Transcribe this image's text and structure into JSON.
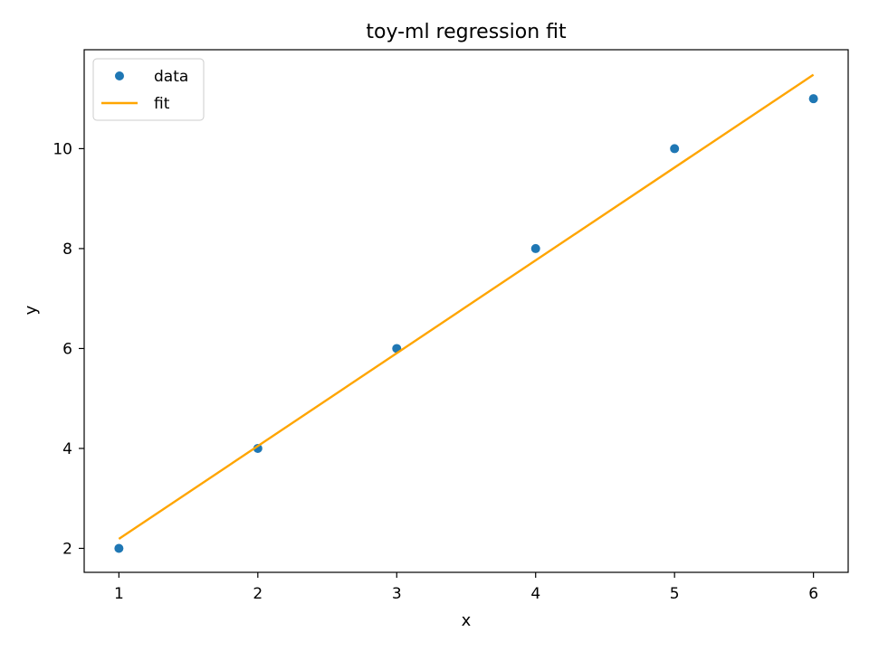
{
  "chart_data": {
    "type": "scatter",
    "title": "toy-ml regression fit",
    "xlabel": "x",
    "ylabel": "y",
    "xlim": [
      0.75,
      6.25
    ],
    "ylim": [
      1.52,
      11.98
    ],
    "xticks": [
      1,
      2,
      3,
      4,
      5,
      6
    ],
    "yticks": [
      2,
      4,
      6,
      8,
      10
    ],
    "grid": false,
    "legend_position": "top-left",
    "series": [
      {
        "name": "data",
        "kind": "scatter",
        "color": "#1f77b4",
        "x": [
          1,
          2,
          3,
          4,
          5,
          6
        ],
        "y": [
          2,
          4,
          6,
          8,
          10,
          11
        ]
      },
      {
        "name": "fit",
        "kind": "line",
        "color": "#ffa500",
        "x": [
          1,
          6
        ],
        "y": [
          2.19,
          11.48
        ]
      }
    ]
  }
}
